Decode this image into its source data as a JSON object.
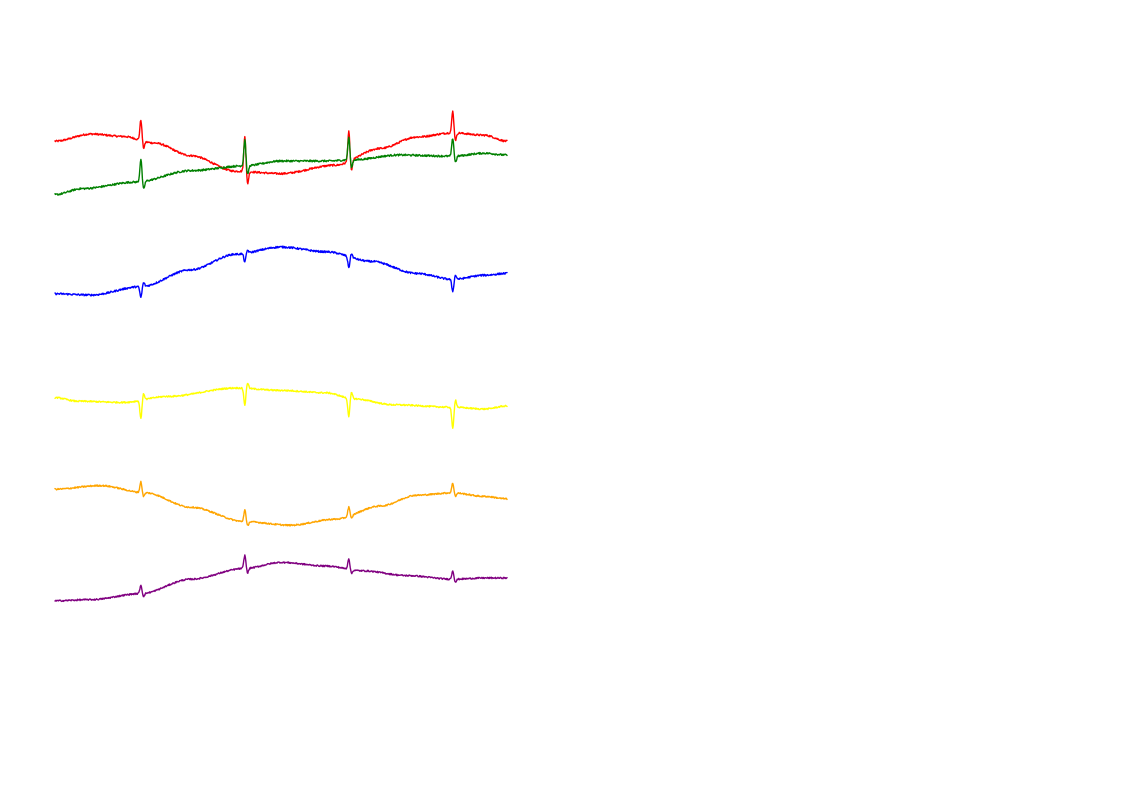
{
  "chart_data": {
    "type": "line",
    "title": "",
    "xlabel": "",
    "ylabel": "",
    "grid": false,
    "legend": "none",
    "beat_times": [
      0.19,
      0.42,
      0.65,
      0.88
    ],
    "series": [
      {
        "color": "#ff0000",
        "baseline": [
          [
            0,
            -0.02
          ],
          [
            0.08,
            0.1
          ],
          [
            0.15,
            0.06
          ],
          [
            0.22,
            -0.05
          ],
          [
            0.3,
            -0.26
          ],
          [
            0.4,
            -0.52
          ],
          [
            0.5,
            -0.56
          ],
          [
            0.62,
            -0.42
          ],
          [
            0.72,
            -0.14
          ],
          [
            0.8,
            0.05
          ],
          [
            0.88,
            0.12
          ],
          [
            0.95,
            0.08
          ],
          [
            1.0,
            -0.02
          ]
        ],
        "r_amplitude": [
          0.34,
          0.6,
          0.5,
          0.36
        ],
        "pulse_width": 0.0022,
        "noise": 0.015
      },
      {
        "color": "#008000",
        "baseline": [
          [
            0,
            -0.16
          ],
          [
            0.06,
            -0.06
          ],
          [
            0.18,
            0.05
          ],
          [
            0.3,
            0.24
          ],
          [
            0.42,
            0.32
          ],
          [
            0.5,
            0.4
          ],
          [
            0.6,
            0.4
          ],
          [
            0.66,
            0.42
          ],
          [
            0.76,
            0.5
          ],
          [
            0.88,
            0.48
          ],
          [
            0.95,
            0.53
          ],
          [
            1.0,
            0.5
          ]
        ],
        "r_amplitude": [
          0.38,
          0.44,
          0.38,
          0.3
        ],
        "pulse_width": 0.0022,
        "noise": 0.015
      },
      {
        "color": "#0000ff",
        "baseline": [
          [
            0,
            -0.48
          ],
          [
            0.08,
            -0.5
          ],
          [
            0.19,
            -0.36
          ],
          [
            0.3,
            -0.08
          ],
          [
            0.4,
            0.18
          ],
          [
            0.5,
            0.3
          ],
          [
            0.6,
            0.22
          ],
          [
            0.7,
            0.06
          ],
          [
            0.8,
            -0.14
          ],
          [
            0.88,
            -0.24
          ],
          [
            0.95,
            -0.17
          ],
          [
            1.0,
            -0.14
          ]
        ],
        "r_amplitude": [
          -0.18,
          -0.14,
          -0.18,
          -0.2
        ],
        "pulse_width": 0.0022,
        "noise": 0.015
      },
      {
        "color": "#ffff00",
        "baseline": [
          [
            0,
            0.04
          ],
          [
            0.05,
            -0.02
          ],
          [
            0.15,
            -0.04
          ],
          [
            0.25,
            0.06
          ],
          [
            0.4,
            0.2
          ],
          [
            0.5,
            0.16
          ],
          [
            0.6,
            0.12
          ],
          [
            0.66,
            0.02
          ],
          [
            0.75,
            -0.08
          ],
          [
            0.88,
            -0.12
          ],
          [
            0.95,
            -0.15
          ],
          [
            1.0,
            -0.1
          ]
        ],
        "r_amplitude": [
          -0.3,
          -0.28,
          -0.3,
          -0.36
        ],
        "pulse_width": 0.0022,
        "noise": 0.012
      },
      {
        "color": "#ffa500",
        "baseline": [
          [
            0,
            0.18
          ],
          [
            0.1,
            0.24
          ],
          [
            0.2,
            0.12
          ],
          [
            0.3,
            -0.12
          ],
          [
            0.42,
            -0.36
          ],
          [
            0.52,
            -0.42
          ],
          [
            0.62,
            -0.32
          ],
          [
            0.72,
            -0.1
          ],
          [
            0.8,
            0.08
          ],
          [
            0.88,
            0.12
          ],
          [
            0.95,
            0.06
          ],
          [
            1.0,
            0.02
          ]
        ],
        "r_amplitude": [
          0.18,
          0.2,
          0.16,
          0.16
        ],
        "pulse_width": 0.0022,
        "noise": 0.012
      },
      {
        "color": "#800080",
        "baseline": [
          [
            0,
            -0.68
          ],
          [
            0.08,
            -0.66
          ],
          [
            0.19,
            -0.56
          ],
          [
            0.3,
            -0.32
          ],
          [
            0.42,
            -0.14
          ],
          [
            0.5,
            -0.04
          ],
          [
            0.6,
            -0.1
          ],
          [
            0.68,
            -0.18
          ],
          [
            0.78,
            -0.26
          ],
          [
            0.88,
            -0.32
          ],
          [
            0.95,
            -0.3
          ],
          [
            1.0,
            -0.3
          ]
        ],
        "r_amplitude": [
          0.14,
          0.22,
          0.18,
          0.14
        ],
        "pulse_width": 0.0022,
        "noise": 0.012
      }
    ]
  }
}
